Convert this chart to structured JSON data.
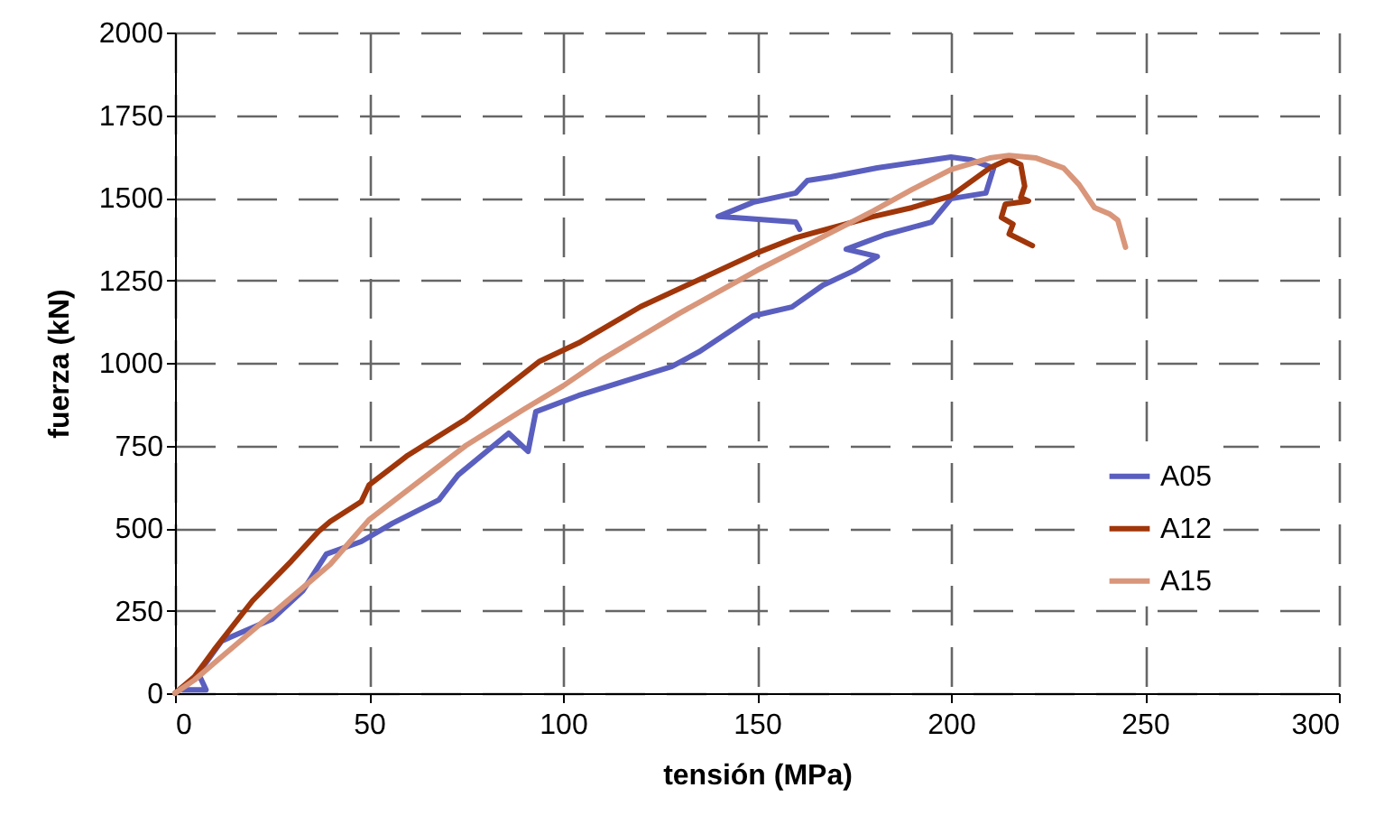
{
  "chart_data": {
    "type": "line",
    "xlabel": "tensión (MPa)",
    "ylabel": "fuerza (kN)",
    "xlim": [
      0,
      300
    ],
    "xticks": [
      0,
      50,
      100,
      150,
      200,
      250,
      300
    ],
    "ylim": [
      0,
      2000
    ],
    "yticks": [
      0,
      250,
      500,
      750,
      1000,
      1250,
      1500,
      1750,
      2000
    ],
    "grid": true,
    "legend": "right",
    "marker": "none",
    "line_style": "solid",
    "series": [
      {
        "name": "A05",
        "color": "#5a5fbf",
        "x": [
          2,
          8,
          6,
          12,
          25,
          33,
          39,
          48,
          56,
          68,
          73,
          86,
          91,
          93,
          104,
          113,
          128,
          135,
          149,
          159,
          167,
          175,
          181,
          173,
          183,
          195,
          200,
          209,
          211,
          205,
          200,
          181,
          169,
          163,
          160,
          149,
          140,
          160,
          161
        ],
        "values": [
          10,
          10,
          60,
          158,
          224,
          311,
          421,
          459,
          514,
          585,
          661,
          787,
          732,
          852,
          901,
          934,
          989,
          1033,
          1142,
          1169,
          1235,
          1279,
          1322,
          1344,
          1388,
          1426,
          1497,
          1514,
          1590,
          1615,
          1623,
          1590,
          1563,
          1552,
          1514,
          1486,
          1443,
          1426,
          1404
        ]
      },
      {
        "name": "A12",
        "color": "#a0360a",
        "x": [
          0,
          5,
          10,
          20,
          30,
          37,
          40,
          48,
          50,
          60,
          75,
          94,
          104,
          120,
          150,
          160,
          180,
          190,
          200,
          210,
          215,
          218,
          219,
          218,
          220,
          214,
          213,
          216,
          215,
          221
        ],
        "values": [
          0,
          50,
          130,
          280,
          400,
          490,
          520,
          580,
          630,
          720,
          830,
          1005,
          1060,
          1170,
          1333,
          1379,
          1443,
          1470,
          1505,
          1590,
          1617,
          1600,
          1535,
          1500,
          1490,
          1480,
          1440,
          1420,
          1390,
          1355
        ]
      },
      {
        "name": "A15",
        "color": "#d9967a",
        "x": [
          0,
          5,
          10,
          20,
          30,
          40,
          50,
          60,
          75,
          90,
          100,
          110,
          120,
          130,
          140,
          150,
          160,
          170,
          180,
          190,
          200,
          210,
          215,
          222,
          229,
          233,
          237,
          241,
          243,
          245
        ],
        "values": [
          0,
          40,
          90,
          190,
          290,
          390,
          525,
          615,
          750,
          860,
          930,
          1010,
          1080,
          1150,
          1215,
          1280,
          1340,
          1400,
          1460,
          1525,
          1585,
          1620,
          1628,
          1620,
          1590,
          1540,
          1470,
          1450,
          1432,
          1350
        ]
      }
    ]
  }
}
